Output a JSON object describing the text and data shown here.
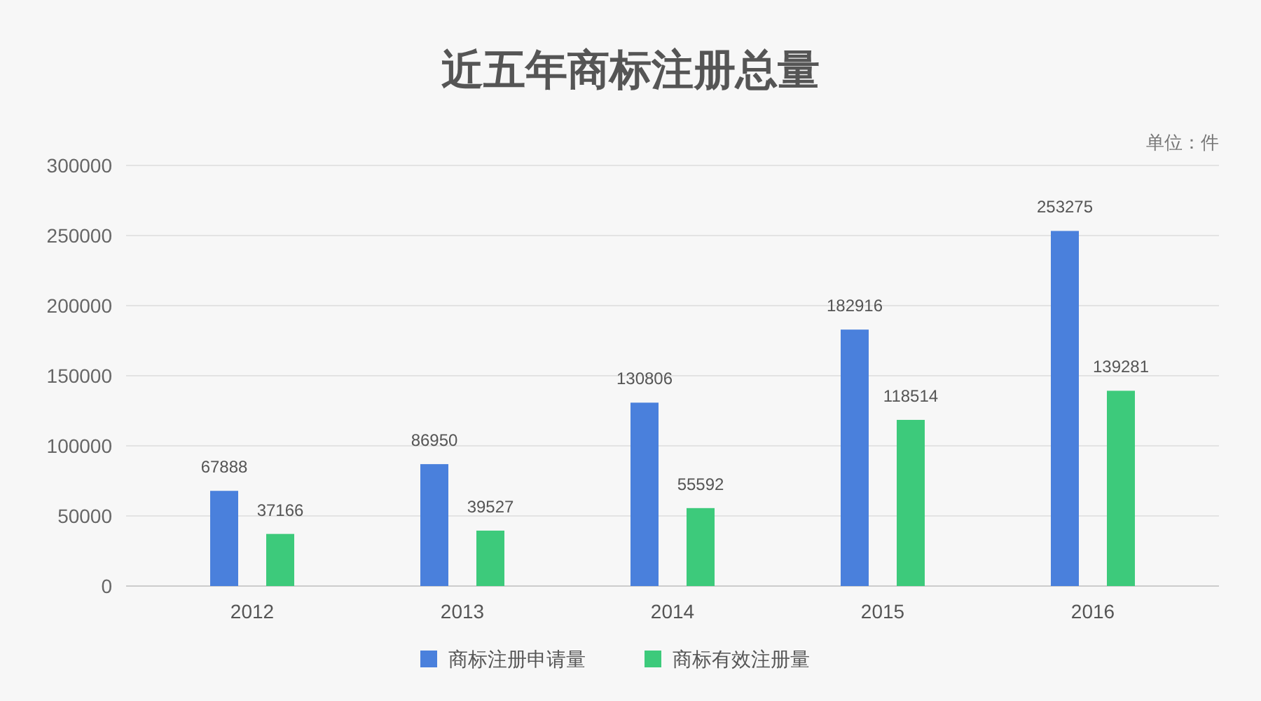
{
  "chart_data": {
    "type": "bar",
    "title": "近五年商标注册总量",
    "annotations": [
      "单位：件"
    ],
    "categories": [
      "2012",
      "2013",
      "2014",
      "2015",
      "2016"
    ],
    "series": [
      {
        "name": "商标注册申请量",
        "color": "#4a80dc",
        "values": [
          67888,
          86950,
          130806,
          182916,
          253275
        ]
      },
      {
        "name": "商标有效注册量",
        "color": "#3dca7b",
        "values": [
          37166,
          39527,
          55592,
          118514,
          139281
        ]
      }
    ],
    "ylim": [
      0,
      300000
    ],
    "yticks": [
      0,
      50000,
      100000,
      150000,
      200000,
      250000,
      300000
    ],
    "grid": "y",
    "legend": "bottom",
    "data_labels": true
  }
}
